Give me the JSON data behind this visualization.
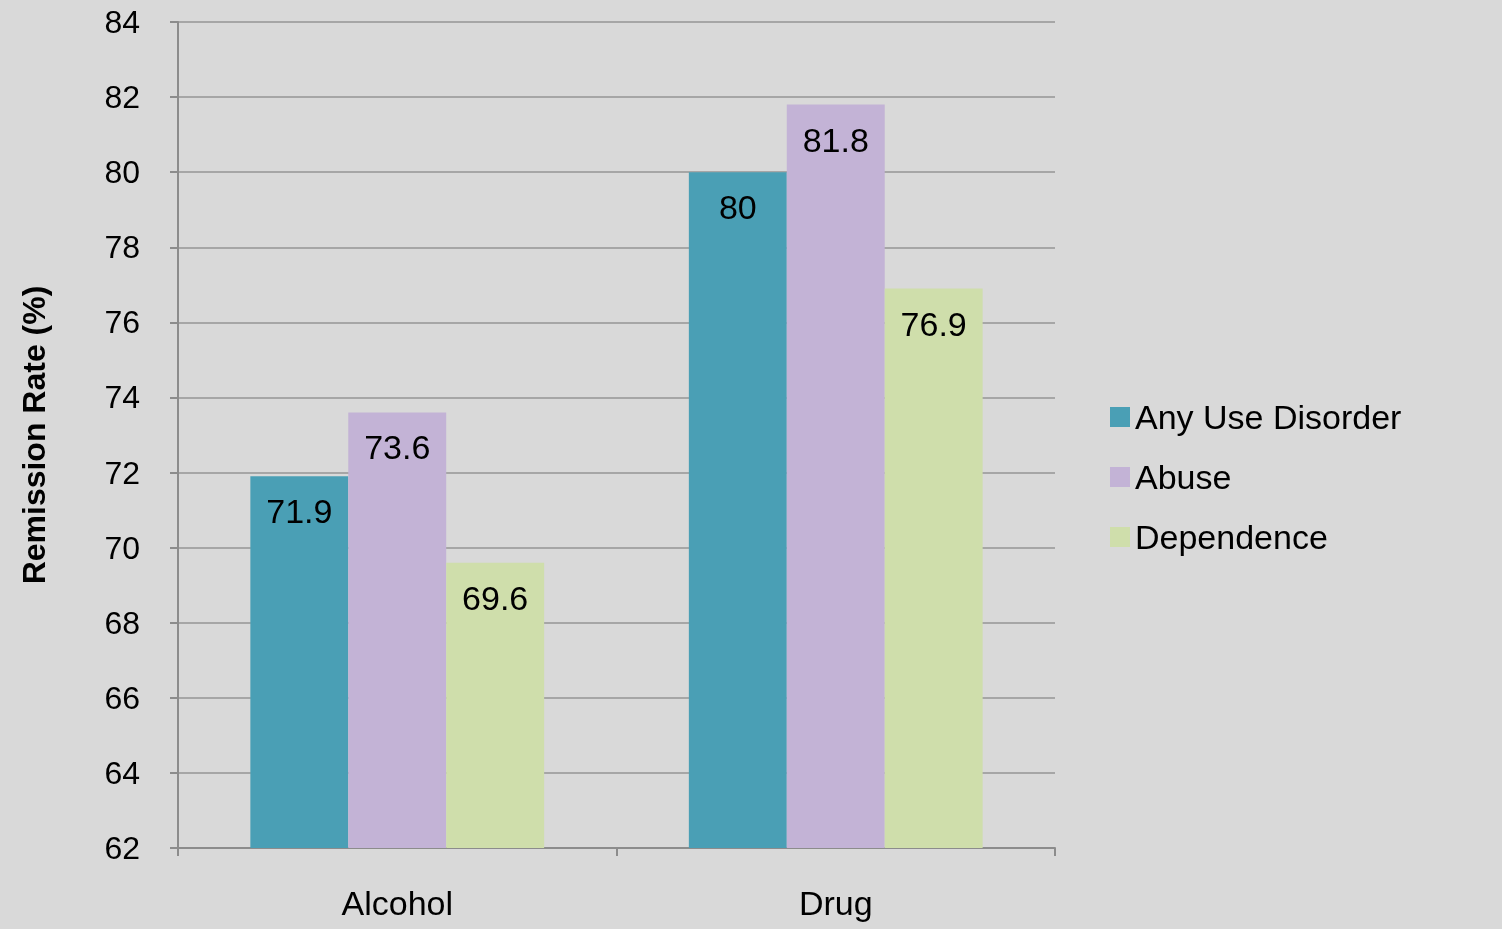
{
  "chart_data": {
    "type": "bar",
    "ylabel": "Remission Rate (%)",
    "categories": [
      "Alcohol",
      "Drug"
    ],
    "series": [
      {
        "name": "Any Use Disorder",
        "color": "#4a9fb5",
        "values": [
          71.9,
          80
        ]
      },
      {
        "name": "Abuse",
        "color": "#c3b3d6",
        "values": [
          73.6,
          81.8
        ]
      },
      {
        "name": "Dependence",
        "color": "#cfdeab",
        "values": [
          69.6,
          76.9
        ]
      }
    ],
    "ylim": [
      62,
      84
    ],
    "yticks": [
      62,
      64,
      66,
      68,
      70,
      72,
      74,
      76,
      78,
      80,
      82,
      84
    ],
    "grid": "y",
    "legend": "right",
    "data_labels": true
  }
}
